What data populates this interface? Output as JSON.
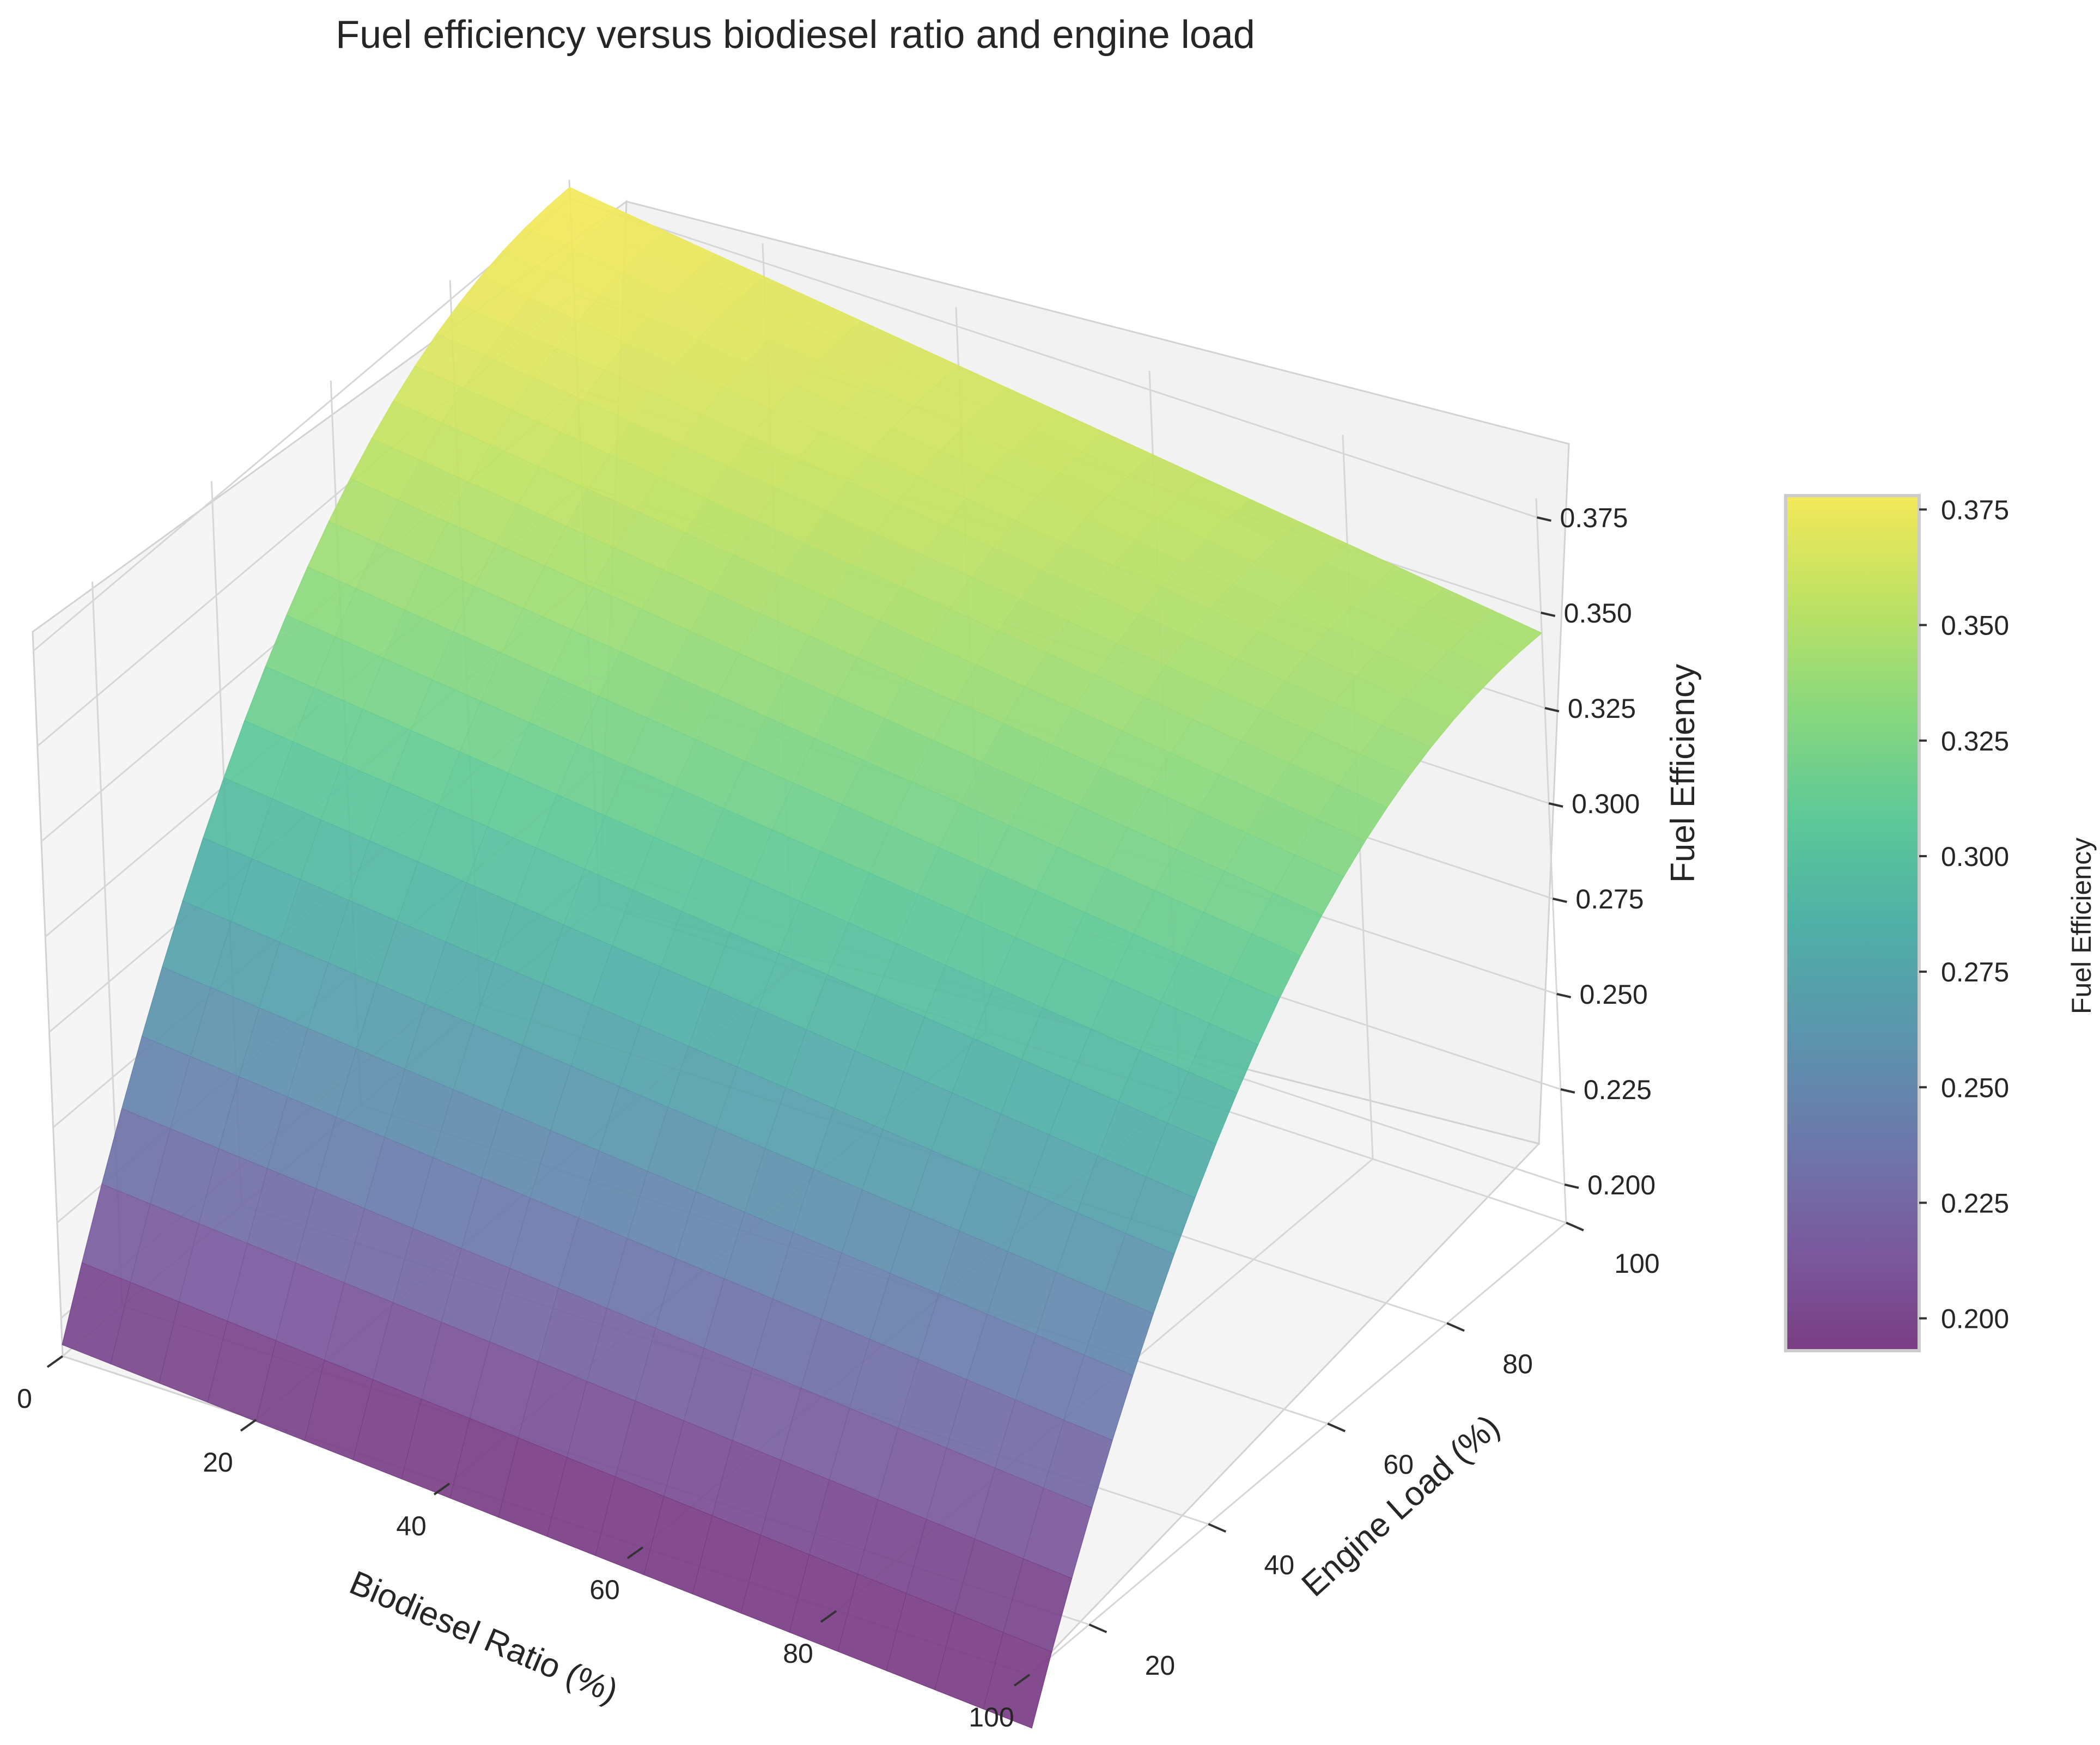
{
  "chart_data": {
    "type": "surface",
    "title": "Fuel efficiency versus biodiesel ratio and engine load",
    "xlabel": "Biodiesel Ratio (%)",
    "ylabel": "Engine Load (%)",
    "zlabel": "Fuel Efficiency",
    "colorbar_label": "Fuel Efficiency",
    "colormap": "viridis",
    "grid": true,
    "x_range": [
      0,
      100
    ],
    "y_range": [
      10,
      100
    ],
    "z_range": [
      0.19,
      0.38
    ],
    "x_ticks": [
      "0",
      "20",
      "40",
      "60",
      "80",
      "100"
    ],
    "y_ticks": [
      "20",
      "40",
      "60",
      "80",
      "100"
    ],
    "z_ticks": [
      "0.200",
      "0.225",
      "0.250",
      "0.275",
      "0.300",
      "0.325",
      "0.350",
      "0.375"
    ],
    "colorbar_ticks": [
      "0.200",
      "0.225",
      "0.250",
      "0.275",
      "0.300",
      "0.325",
      "0.350",
      "0.375"
    ],
    "colorbar_range": [
      0.193,
      0.378
    ],
    "corner_values": {
      "x0_y10": 0.193,
      "x100_y10": 0.176,
      "x0_y100": 0.378,
      "x100_y100": 0.345
    },
    "x": [
      0,
      20,
      40,
      60,
      80,
      100
    ],
    "y": [
      10,
      20,
      40,
      60,
      80,
      100
    ],
    "z": [
      [
        0.193,
        0.248,
        0.308,
        0.345,
        0.369,
        0.378
      ],
      [
        0.19,
        0.244,
        0.303,
        0.339,
        0.362,
        0.372
      ],
      [
        0.187,
        0.24,
        0.297,
        0.333,
        0.356,
        0.365
      ],
      [
        0.183,
        0.235,
        0.292,
        0.327,
        0.349,
        0.358
      ],
      [
        0.18,
        0.231,
        0.286,
        0.321,
        0.342,
        0.351
      ],
      [
        0.176,
        0.226,
        0.281,
        0.315,
        0.336,
        0.345
      ]
    ]
  }
}
